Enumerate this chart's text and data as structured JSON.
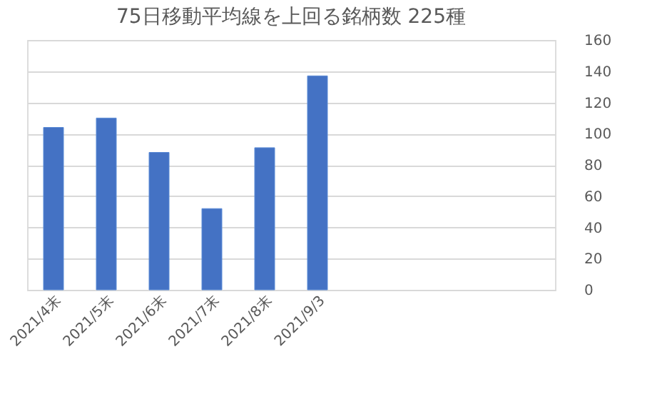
{
  "chart_data": {
    "type": "bar",
    "title": "75日移動平均線を上回る銘柄数 225種",
    "categories": [
      "2021/4末",
      "2021/5末",
      "2021/6末",
      "2021/7末",
      "2021/8末",
      "2021/9/3",
      null,
      null,
      null,
      null
    ],
    "values": [
      104,
      110,
      88,
      52,
      91,
      137,
      null,
      null,
      null,
      null
    ],
    "color": "#4472c4",
    "ylim": [
      0,
      160
    ],
    "yticks": [
      0,
      20,
      40,
      60,
      80,
      100,
      120,
      140,
      160
    ],
    "grid": "y"
  }
}
